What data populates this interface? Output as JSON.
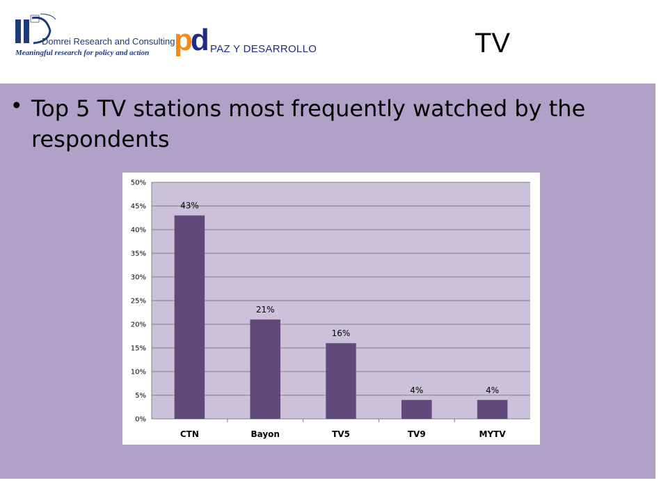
{
  "header": {
    "logo_dri": {
      "name": "Domrei Research and Consulting",
      "tagline": "Meaningful research for policy and action"
    },
    "logo_pd": {
      "name": "PAZ Y DESARROLLO",
      "mark": "pd"
    },
    "title": "TV"
  },
  "content": {
    "bullet": "Top 5 TV stations most frequently watched by the respondents"
  },
  "colors": {
    "bar": "#604a7b",
    "plot_bg": "#ccc1da",
    "content_bg": "#b1a1c8"
  },
  "chart_data": {
    "type": "bar",
    "categories": [
      "CTN",
      "Bayon",
      "TV5",
      "TV9",
      "MYTV"
    ],
    "values": [
      43,
      21,
      16,
      4,
      4
    ],
    "data_labels": [
      "43%",
      "21%",
      "16%",
      "4%",
      "4%"
    ],
    "y_ticks": [
      "0%",
      "5%",
      "10%",
      "15%",
      "20%",
      "25%",
      "30%",
      "35%",
      "40%",
      "45%",
      "50%"
    ],
    "ylim": [
      0,
      50
    ],
    "grid": true,
    "title": "",
    "xlabel": "",
    "ylabel": ""
  }
}
